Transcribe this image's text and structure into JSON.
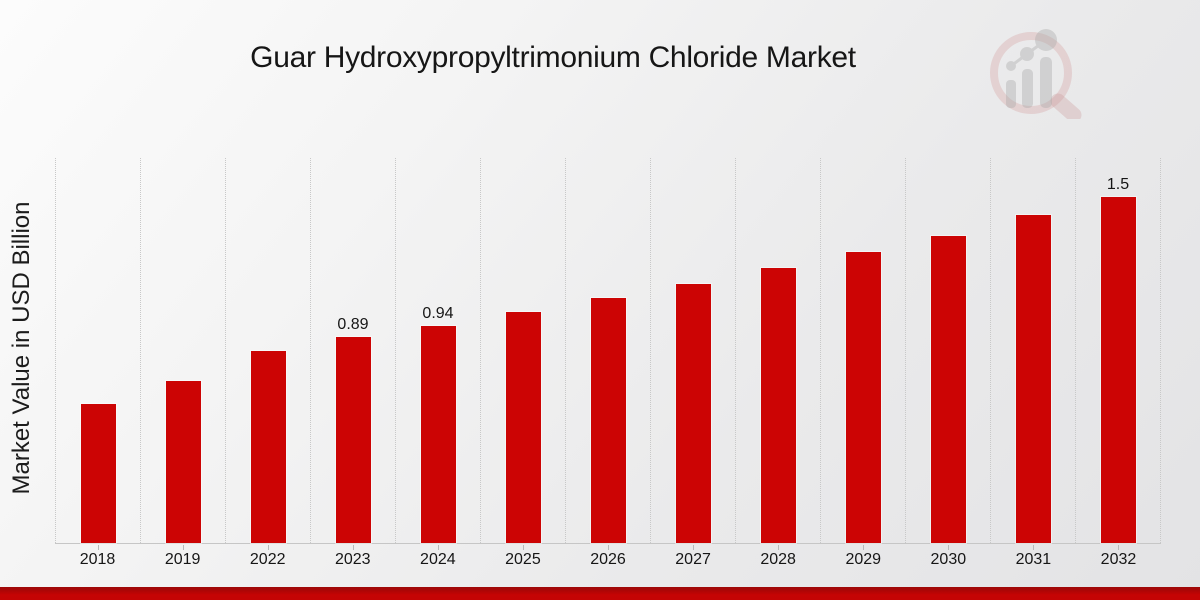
{
  "header": {
    "title": "Guar Hydroxypropyltrimonium Chloride Market"
  },
  "y_axis": {
    "label": "Market Value in USD Billion"
  },
  "brand": {
    "logo_icon": "magnifier-growth-chart-logo-icon"
  },
  "colors": {
    "bar": "#cc0404",
    "banner_top": "#9e0909",
    "banner_bottom": "#c40404",
    "axis_line": "#c6c6c6",
    "gridline": "#c8c8c8",
    "text": "#161616",
    "logo_pink": "#d49c9c",
    "logo_gray": "#a8a8a8"
  },
  "chart_data": {
    "type": "bar",
    "title": "Guar Hydroxypropyltrimonium Chloride Market",
    "xlabel": "",
    "ylabel": "Market Value in USD Billion",
    "unit": "USD Billion",
    "categories": [
      "2018",
      "2019",
      "2022",
      "2023",
      "2024",
      "2025",
      "2026",
      "2027",
      "2028",
      "2029",
      "2030",
      "2031",
      "2032"
    ],
    "values": [
      0.6,
      0.7,
      0.83,
      0.89,
      0.94,
      1.0,
      1.06,
      1.12,
      1.19,
      1.26,
      1.33,
      1.42,
      1.5
    ],
    "data_labels": [
      "",
      "",
      "",
      "0.89",
      "0.94",
      "",
      "",
      "",
      "",
      "",
      "",
      "",
      "1.5"
    ],
    "ylim": [
      0,
      1.667
    ],
    "grid": "vertical-dotted",
    "legend_position": "none",
    "bar_color": "#cc0404"
  }
}
